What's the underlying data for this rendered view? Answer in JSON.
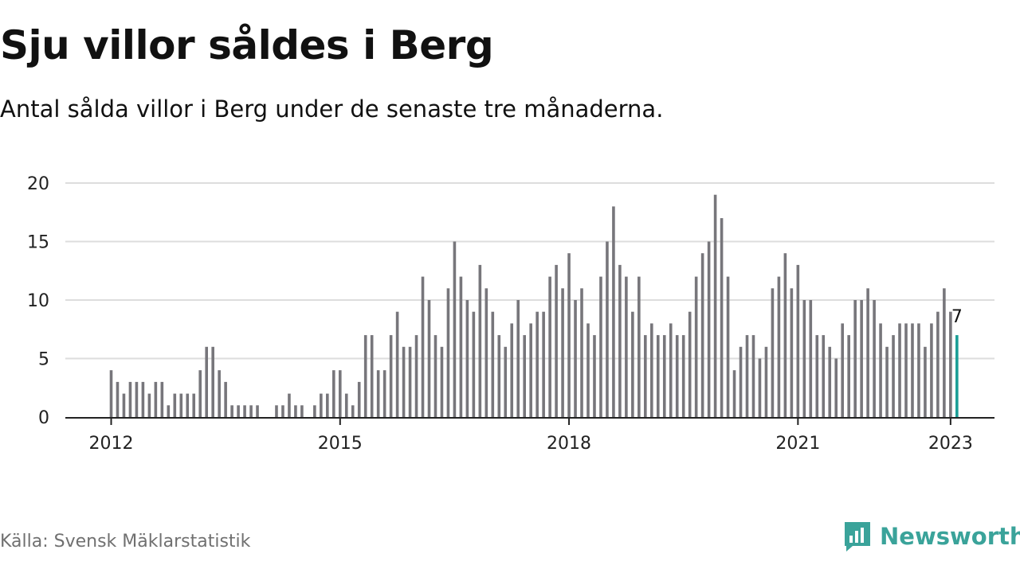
{
  "header": {
    "title": "Sju villor såldes i Berg",
    "subtitle": "Antal sålda villor i Berg under de senaste tre månaderna."
  },
  "footer": {
    "source": "Källa: Svensk Mäklarstatistik",
    "brand": "Newsworthy",
    "brand_icon": "bar-chart-speech-bubble-icon"
  },
  "colors": {
    "bar": "#77767b",
    "highlight": "#1a9e96",
    "grid": "#dddddd",
    "axis": "#222222",
    "brand": "#3aa39a"
  },
  "chart_data": {
    "type": "bar",
    "title": "Sju villor såldes i Berg",
    "subtitle": "Antal sålda villor i Berg under de senaste tre månaderna.",
    "xlabel": "",
    "ylabel": "",
    "ylim": [
      0,
      20
    ],
    "yticks": [
      0,
      5,
      10,
      15,
      20
    ],
    "grid": "horizontal",
    "legend": "none",
    "x_start": "2012-01",
    "x_step": "month",
    "xticks": [
      {
        "label": "2012",
        "month": "2012-01"
      },
      {
        "label": "2015",
        "month": "2015-01"
      },
      {
        "label": "2018",
        "month": "2018-01"
      },
      {
        "label": "2021",
        "month": "2021-01"
      },
      {
        "label": "2023",
        "month": "2023-01"
      }
    ],
    "values": [
      4,
      3,
      2,
      3,
      3,
      3,
      2,
      3,
      3,
      1,
      2,
      2,
      2,
      2,
      4,
      6,
      6,
      4,
      3,
      1,
      1,
      1,
      1,
      1,
      0,
      0,
      1,
      1,
      2,
      1,
      1,
      0,
      1,
      2,
      2,
      4,
      4,
      2,
      1,
      3,
      7,
      7,
      4,
      4,
      7,
      9,
      6,
      6,
      7,
      12,
      10,
      7,
      6,
      11,
      15,
      12,
      10,
      9,
      13,
      11,
      9,
      7,
      6,
      8,
      10,
      7,
      8,
      9,
      9,
      12,
      13,
      11,
      14,
      10,
      11,
      8,
      7,
      12,
      15,
      18,
      13,
      12,
      9,
      12,
      7,
      8,
      7,
      7,
      8,
      7,
      7,
      9,
      12,
      14,
      15,
      19,
      17,
      12,
      4,
      6,
      7,
      7,
      5,
      6,
      11,
      12,
      14,
      11,
      13,
      10,
      10,
      7,
      7,
      6,
      5,
      8,
      7,
      10,
      10,
      11,
      10,
      8,
      6,
      7,
      8,
      8,
      8,
      8,
      6,
      8,
      9,
      11,
      9,
      7
    ],
    "highlight_last": true,
    "annotation": {
      "label": "7",
      "value": 7
    }
  }
}
